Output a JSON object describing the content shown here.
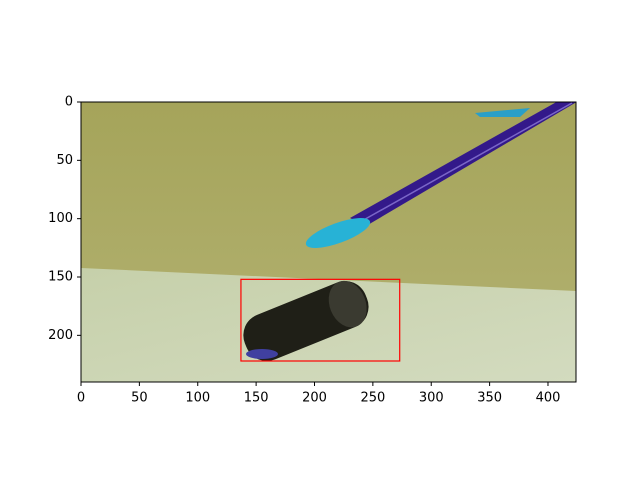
{
  "chart_data": {
    "type": "image",
    "xlim": [
      0,
      424
    ],
    "ylim": [
      240,
      0
    ],
    "xticks": [
      0,
      50,
      100,
      150,
      200,
      250,
      300,
      350,
      400
    ],
    "yticks": [
      0,
      50,
      100,
      150,
      200
    ],
    "box": {
      "xmin": 137,
      "ymin": 152,
      "xmax": 273,
      "ymax": 222,
      "color": "#ff0000"
    }
  }
}
